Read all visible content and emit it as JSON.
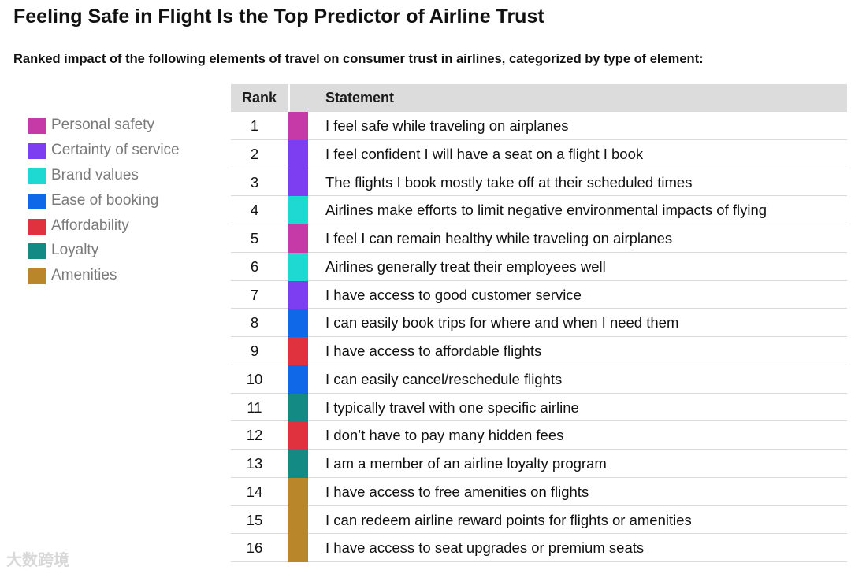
{
  "chart_data": {
    "type": "table",
    "title": "Feeling Safe in Flight Is the Top Predictor of Airline Trust",
    "subtitle": "Ranked impact of the following elements of travel on consumer trust in airlines, categorized by type of element:",
    "columns": [
      "Rank",
      "Statement"
    ],
    "categories": [
      {
        "name": "Personal safety",
        "color": "#c63aa8"
      },
      {
        "name": "Certainty of service",
        "color": "#7c3ef0"
      },
      {
        "name": "Brand values",
        "color": "#1ed9d2"
      },
      {
        "name": "Ease of booking",
        "color": "#0e68e8"
      },
      {
        "name": "Affordability",
        "color": "#e0313f"
      },
      {
        "name": "Loyalty",
        "color": "#138b84"
      },
      {
        "name": "Amenities",
        "color": "#b9862a"
      }
    ],
    "rows": [
      {
        "rank": "1",
        "statement": "I feel safe while traveling on airplanes",
        "category": "Personal safety",
        "color": "#c63aa8"
      },
      {
        "rank": "2",
        "statement": "I feel confident I will have a seat on a flight I book",
        "category": "Certainty of service",
        "color": "#7c3ef0"
      },
      {
        "rank": "3",
        "statement": "The flights I book mostly take off at their scheduled times",
        "category": "Certainty of service",
        "color": "#7c3ef0"
      },
      {
        "rank": "4",
        "statement": "Airlines make efforts to limit negative environmental impacts of flying",
        "category": "Brand values",
        "color": "#1ed9d2"
      },
      {
        "rank": "5",
        "statement": "I feel I can remain healthy while traveling on airplanes",
        "category": "Personal safety",
        "color": "#c63aa8"
      },
      {
        "rank": "6",
        "statement": "Airlines generally treat their employees well",
        "category": "Brand values",
        "color": "#1ed9d2"
      },
      {
        "rank": "7",
        "statement": "I have access to good customer service",
        "category": "Certainty of service",
        "color": "#7c3ef0"
      },
      {
        "rank": "8",
        "statement": "I can easily book trips for where and when I need them",
        "category": "Ease of booking",
        "color": "#0e68e8"
      },
      {
        "rank": "9",
        "statement": "I have access to affordable flights",
        "category": "Affordability",
        "color": "#e0313f"
      },
      {
        "rank": "10",
        "statement": "I can easily cancel/reschedule flights",
        "category": "Ease of booking",
        "color": "#0e68e8"
      },
      {
        "rank": "11",
        "statement": "I typically travel with one specific airline",
        "category": "Loyalty",
        "color": "#138b84"
      },
      {
        "rank": "12",
        "statement": "I don’t have to pay many hidden fees",
        "category": "Affordability",
        "color": "#e0313f"
      },
      {
        "rank": "13",
        "statement": "I am a member of an airline loyalty program",
        "category": "Loyalty",
        "color": "#138b84"
      },
      {
        "rank": "14",
        "statement": "I have access to free amenities on flights",
        "category": "Amenities",
        "color": "#b9862a"
      },
      {
        "rank": "15",
        "statement": "I can redeem airline reward points for flights or amenities",
        "category": "Amenities",
        "color": "#b9862a"
      },
      {
        "rank": "16",
        "statement": "I have access to seat upgrades or premium seats",
        "category": "Amenities",
        "color": "#b9862a"
      }
    ]
  },
  "watermark": "大数跨境"
}
